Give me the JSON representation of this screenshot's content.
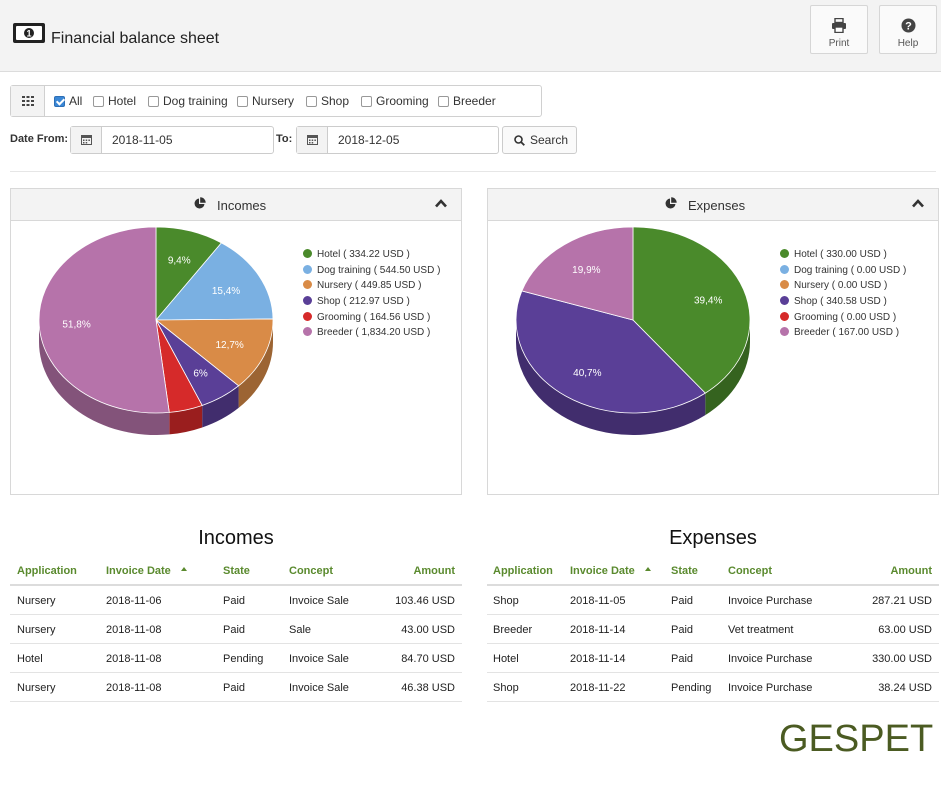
{
  "app": {
    "title": "Financial balance sheet"
  },
  "toolbar": {
    "print_label": "Print",
    "help_label": "Help"
  },
  "filters": [
    {
      "label": "All",
      "checked": true
    },
    {
      "label": "Hotel",
      "checked": false
    },
    {
      "label": "Dog training",
      "checked": false
    },
    {
      "label": "Nursery",
      "checked": false
    },
    {
      "label": "Shop",
      "checked": false
    },
    {
      "label": "Grooming",
      "checked": false
    },
    {
      "label": "Breeder",
      "checked": false
    }
  ],
  "dates": {
    "from_label": "Date From:",
    "from_value": "2018-11-05",
    "to_label": "To:",
    "to_value": "2018-12-05",
    "search_label": "Search"
  },
  "colors": {
    "Hotel": "#4a8a2b",
    "Dog training": "#7ab0e2",
    "Nursery": "#d98b47",
    "Shop": "#5a3f97",
    "Grooming": "#d62a2a",
    "Breeder": "#b673aa",
    "header_green": "#5a8a2e"
  },
  "charts": {
    "incomes": {
      "title": "Incomes",
      "legend": [
        {
          "name": "Hotel",
          "text": "Hotel ( 334.22 USD )"
        },
        {
          "name": "Dog training",
          "text": "Dog training ( 544.50 USD )"
        },
        {
          "name": "Nursery",
          "text": "Nursery ( 449.85 USD )"
        },
        {
          "name": "Shop",
          "text": "Shop ( 212.97 USD )"
        },
        {
          "name": "Grooming",
          "text": "Grooming ( 164.56 USD )"
        },
        {
          "name": "Breeder",
          "text": "Breeder ( 1,834.20 USD )"
        }
      ],
      "slices": [
        {
          "name": "Hotel",
          "value": 334.22,
          "label": "9,4%"
        },
        {
          "name": "Dog training",
          "value": 544.5,
          "label": "15,4%"
        },
        {
          "name": "Nursery",
          "value": 449.85,
          "label": "12,7%"
        },
        {
          "name": "Shop",
          "value": 212.97,
          "label": "6%"
        },
        {
          "name": "Grooming",
          "value": 164.56,
          "label": ""
        },
        {
          "name": "Breeder",
          "value": 1834.2,
          "label": "51,8%"
        }
      ]
    },
    "expenses": {
      "title": "Expenses",
      "legend": [
        {
          "name": "Hotel",
          "text": "Hotel ( 330.00 USD )"
        },
        {
          "name": "Dog training",
          "text": "Dog training ( 0.00 USD )"
        },
        {
          "name": "Nursery",
          "text": "Nursery ( 0.00 USD )"
        },
        {
          "name": "Shop",
          "text": "Shop ( 340.58 USD )"
        },
        {
          "name": "Grooming",
          "text": "Grooming ( 0.00 USD )"
        },
        {
          "name": "Breeder",
          "text": "Breeder ( 167.00 USD )"
        }
      ],
      "slices": [
        {
          "name": "Hotel",
          "value": 330.0,
          "label": "39,4%"
        },
        {
          "name": "Shop",
          "value": 340.58,
          "label": "40,7%"
        },
        {
          "name": "Breeder",
          "value": 167.0,
          "label": "19,9%"
        }
      ]
    }
  },
  "chart_data": [
    {
      "type": "pie",
      "title": "Incomes",
      "categories": [
        "Hotel",
        "Dog training",
        "Nursery",
        "Shop",
        "Grooming",
        "Breeder"
      ],
      "values": [
        334.22,
        544.5,
        449.85,
        212.97,
        164.56,
        1834.2
      ],
      "data_labels": [
        "9,4%",
        "15,4%",
        "12,7%",
        "6%",
        "",
        "51,8%"
      ],
      "legend": "right"
    },
    {
      "type": "pie",
      "title": "Expenses",
      "categories": [
        "Hotel",
        "Dog training",
        "Nursery",
        "Shop",
        "Grooming",
        "Breeder"
      ],
      "values": [
        330.0,
        0.0,
        0.0,
        340.58,
        0.0,
        167.0
      ],
      "data_labels": [
        "39,4%",
        "",
        "",
        "40,7%",
        "",
        "19,9%"
      ],
      "legend": "right"
    }
  ],
  "tables": {
    "incomes": {
      "title": "Incomes",
      "headers": {
        "application": "Application",
        "invoice_date": "Invoice Date",
        "state": "State",
        "concept": "Concept",
        "amount": "Amount"
      },
      "rows": [
        {
          "application": "Nursery",
          "invoice_date": "2018-11-06",
          "state": "Paid",
          "concept": "Invoice Sale",
          "amount": "103.46 USD"
        },
        {
          "application": "Nursery",
          "invoice_date": "2018-11-08",
          "state": "Paid",
          "concept": "Sale",
          "amount": "43.00 USD"
        },
        {
          "application": "Hotel",
          "invoice_date": "2018-11-08",
          "state": "Pending",
          "concept": "Invoice Sale",
          "amount": "84.70 USD"
        },
        {
          "application": "Nursery",
          "invoice_date": "2018-11-08",
          "state": "Paid",
          "concept": "Invoice Sale",
          "amount": "46.38 USD"
        }
      ]
    },
    "expenses": {
      "title": "Expenses",
      "headers": {
        "application": "Application",
        "invoice_date": "Invoice Date",
        "state": "State",
        "concept": "Concept",
        "amount": "Amount"
      },
      "rows": [
        {
          "application": "Shop",
          "invoice_date": "2018-11-05",
          "state": "Paid",
          "concept": "Invoice Purchase",
          "amount": "287.21 USD"
        },
        {
          "application": "Breeder",
          "invoice_date": "2018-11-14",
          "state": "Paid",
          "concept": "Vet treatment",
          "amount": "63.00 USD"
        },
        {
          "application": "Hotel",
          "invoice_date": "2018-11-14",
          "state": "Paid",
          "concept": "Invoice Purchase",
          "amount": "330.00 USD"
        },
        {
          "application": "Shop",
          "invoice_date": "2018-11-22",
          "state": "Pending",
          "concept": "Invoice Purchase",
          "amount": "38.24 USD"
        }
      ]
    }
  },
  "brand": {
    "text": "GESPET"
  }
}
